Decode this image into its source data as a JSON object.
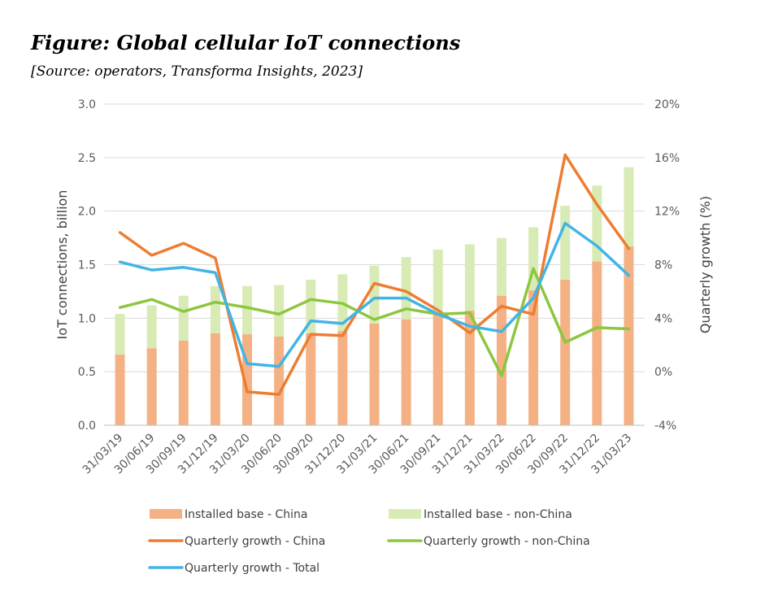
{
  "header": {
    "title": "Figure: Global cellular IoT connections",
    "subtitle": "[Source: operators, Transforma Insights, 2023]"
  },
  "colors": {
    "china_bar": "#f4b183",
    "nonchina_bar": "#d9ebb5",
    "china_line": "#ed7d31",
    "nonchina_line": "#8dc63f",
    "total_line": "#42b4e6",
    "grid": "#d9d9d9",
    "axis": "#bfbfbf"
  },
  "chart_data": {
    "type": "bar",
    "combo": "stacked bar + line (secondary axis)",
    "categories": [
      "31/03/19",
      "30/06/19",
      "30/09/19",
      "31/12/19",
      "31/03/20",
      "30/06/20",
      "30/09/20",
      "31/12/20",
      "31/03/21",
      "30/06/21",
      "30/09/21",
      "31/12/21",
      "31/03/22",
      "30/06/22",
      "30/09/22",
      "31/12/22",
      "31/03/23"
    ],
    "ylabel": "IoT connections, billion",
    "y2label": "Quarterly growth (%)",
    "ylim": [
      0,
      3.0
    ],
    "yticks": [
      "0.0",
      "0.5",
      "1.0",
      "1.5",
      "2.0",
      "2.5",
      "3.0"
    ],
    "y2lim": [
      -4,
      20
    ],
    "y2ticks": [
      "-4%",
      "0%",
      "4%",
      "8%",
      "12%",
      "16%",
      "20%"
    ],
    "grid": true,
    "legend_position": "bottom",
    "bar_series": [
      {
        "name": "Installed base - China",
        "color_key": "china_bar",
        "values": [
          0.66,
          0.72,
          0.79,
          0.86,
          0.85,
          0.83,
          0.86,
          0.88,
          0.95,
          0.99,
          1.04,
          1.07,
          1.21,
          1.26,
          1.36,
          1.53,
          1.67
        ]
      },
      {
        "name": "Installed base - non-China",
        "color_key": "nonchina_bar",
        "values": [
          0.38,
          0.4,
          0.42,
          0.44,
          0.45,
          0.48,
          0.5,
          0.53,
          0.54,
          0.58,
          0.6,
          0.62,
          0.54,
          0.59,
          0.69,
          0.71,
          0.74
        ]
      }
    ],
    "line_series": [
      {
        "name": "Quarterly growth - China",
        "color_key": "china_line",
        "values": [
          10.4,
          8.7,
          9.6,
          8.5,
          -1.5,
          -1.7,
          2.8,
          2.7,
          6.6,
          6.0,
          4.6,
          2.9,
          4.9,
          4.3,
          16.2,
          12.5,
          9.2
        ]
      },
      {
        "name": "Quarterly growth - non-China",
        "color_key": "nonchina_line",
        "values": [
          4.8,
          5.4,
          4.5,
          5.2,
          4.8,
          4.3,
          5.4,
          5.1,
          3.9,
          4.7,
          4.3,
          4.4,
          -0.3,
          7.7,
          2.2,
          3.3,
          3.2
        ]
      },
      {
        "name": "Quarterly growth - Total",
        "color_key": "total_line",
        "values": [
          8.2,
          7.6,
          7.8,
          7.4,
          0.6,
          0.4,
          3.8,
          3.6,
          5.5,
          5.5,
          4.3,
          3.4,
          3.0,
          5.5,
          11.1,
          9.4,
          7.2
        ]
      }
    ]
  }
}
